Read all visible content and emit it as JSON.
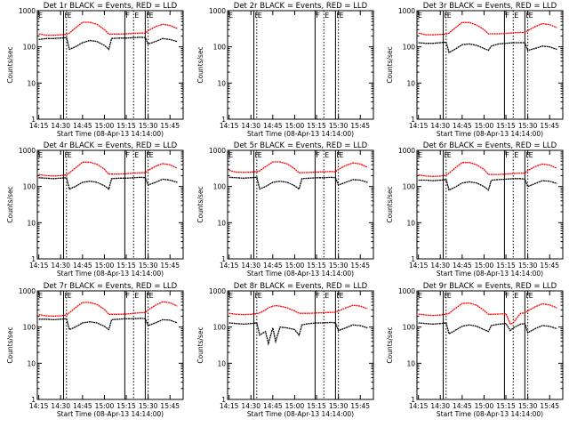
{
  "figure": {
    "background": "#ffffff",
    "axis_color": "#000000"
  },
  "colors": {
    "events": "#000000",
    "lld": "#ff0000"
  },
  "shared_labels": {
    "xlabel": "Start Time (08-Apr-13 14:14:00)",
    "ylabel": "Counts/sec",
    "xticks": [
      "14:15",
      "14:30",
      "14:45",
      "15:00",
      "15:15",
      "15:30",
      "15:45"
    ],
    "yticks": [
      "1",
      "10",
      "100",
      "1000"
    ]
  },
  "chart_data": [
    {
      "type": "line",
      "title": "Det 1r BLACK = Events, RED = LLD",
      "xlabel": "Start Time (08-Apr-13 14:14:00)",
      "ylabel": "Counts/sec",
      "xlim": [
        "14:14",
        "15:54"
      ],
      "ylim": [
        1,
        1000
      ],
      "yscale": "log",
      "markers": [
        {
          "t": "14:14",
          "label": "E"
        },
        {
          "t": "14:32",
          "label": "F"
        },
        {
          "t": "14:34",
          "label": "E"
        },
        {
          "t": "15:14",
          "label": "F"
        },
        {
          "t": "15:20",
          "label": "E"
        },
        {
          "t": "15:28",
          "label": "F"
        },
        {
          "t": "15:30",
          "label": "E"
        }
      ],
      "x": [
        "14:15",
        "14:20",
        "14:25",
        "14:30",
        "14:34",
        "14:36",
        "14:40",
        "14:45",
        "14:50",
        "14:55",
        "15:00",
        "15:03",
        "15:05",
        "15:10",
        "15:15",
        "15:20",
        "15:25",
        "15:28",
        "15:30",
        "15:35",
        "15:40",
        "15:45",
        "15:50"
      ],
      "series": [
        {
          "name": "Events",
          "values": [
            160,
            170,
            170,
            175,
            180,
            85,
            100,
            130,
            150,
            140,
            110,
            85,
            170,
            175,
            175,
            180,
            185,
            180,
            120,
            140,
            170,
            160,
            140
          ]
        },
        {
          "name": "LLD",
          "values": [
            230,
            210,
            210,
            215,
            220,
            240,
            330,
            480,
            480,
            420,
            300,
            225,
            225,
            225,
            230,
            235,
            240,
            240,
            280,
            360,
            420,
            390,
            320
          ]
        }
      ]
    },
    {
      "type": "line",
      "title": "Det 2r BLACK = Events, RED = LLD",
      "xlabel": "Start Time (08-Apr-13 14:14:00)",
      "ylabel": "Counts/sec",
      "xlim": [
        "14:14",
        "15:54"
      ],
      "ylim": [
        1,
        1000
      ],
      "yscale": "log",
      "markers": [
        {
          "t": "14:14",
          "label": "E"
        },
        {
          "t": "14:32",
          "label": "F"
        },
        {
          "t": "14:34",
          "label": "E"
        },
        {
          "t": "15:14",
          "label": "F"
        },
        {
          "t": "15:20",
          "label": "E"
        },
        {
          "t": "15:28",
          "label": "F"
        },
        {
          "t": "15:30",
          "label": "E"
        }
      ],
      "x": [],
      "series": []
    },
    {
      "type": "line",
      "title": "Det 3r BLACK = Events, RED = LLD",
      "xlabel": "Start Time (08-Apr-13 14:14:00)",
      "ylabel": "Counts/sec",
      "xlim": [
        "14:14",
        "15:54"
      ],
      "ylim": [
        1,
        1000
      ],
      "yscale": "log",
      "markers": [
        {
          "t": "14:14",
          "label": "E"
        },
        {
          "t": "14:32",
          "label": "F"
        },
        {
          "t": "14:34",
          "label": "E"
        },
        {
          "t": "15:14",
          "label": "F"
        },
        {
          "t": "15:20",
          "label": "E"
        },
        {
          "t": "15:28",
          "label": "F"
        },
        {
          "t": "15:30",
          "label": "E"
        }
      ],
      "x": [
        "14:15",
        "14:20",
        "14:25",
        "14:30",
        "14:34",
        "14:36",
        "14:40",
        "14:45",
        "14:50",
        "14:55",
        "15:00",
        "15:03",
        "15:05",
        "15:10",
        "15:15",
        "15:20",
        "15:25",
        "15:28",
        "15:30",
        "15:35",
        "15:40",
        "15:45",
        "15:50"
      ],
      "series": [
        {
          "name": "Events",
          "values": [
            130,
            125,
            125,
            130,
            135,
            70,
            85,
            115,
            120,
            110,
            90,
            80,
            105,
            120,
            125,
            130,
            130,
            130,
            80,
            90,
            105,
            100,
            85
          ]
        },
        {
          "name": "LLD",
          "values": [
            240,
            215,
            215,
            220,
            225,
            240,
            330,
            470,
            470,
            400,
            300,
            230,
            230,
            230,
            235,
            245,
            250,
            250,
            280,
            360,
            440,
            410,
            340
          ]
        }
      ]
    },
    {
      "type": "line",
      "title": "Det 4r BLACK = Events, RED = LLD",
      "xlabel": "Start Time (08-Apr-13 14:14:00)",
      "ylabel": "Counts/sec",
      "xlim": [
        "14:14",
        "15:54"
      ],
      "ylim": [
        1,
        1000
      ],
      "yscale": "log",
      "markers": [
        {
          "t": "14:14",
          "label": "E"
        },
        {
          "t": "14:32",
          "label": "F"
        },
        {
          "t": "14:34",
          "label": "E"
        },
        {
          "t": "15:14",
          "label": "F"
        },
        {
          "t": "15:20",
          "label": "E"
        },
        {
          "t": "15:28",
          "label": "F"
        },
        {
          "t": "15:30",
          "label": "E"
        }
      ],
      "x": [
        "14:15",
        "14:20",
        "14:25",
        "14:30",
        "14:34",
        "14:36",
        "14:40",
        "14:45",
        "14:50",
        "14:55",
        "15:00",
        "15:03",
        "15:05",
        "15:10",
        "15:15",
        "15:20",
        "15:25",
        "15:28",
        "15:30",
        "15:35",
        "15:40",
        "15:45",
        "15:50"
      ],
      "series": [
        {
          "name": "Events",
          "values": [
            175,
            170,
            165,
            170,
            175,
            85,
            100,
            130,
            140,
            130,
            105,
            85,
            165,
            170,
            170,
            175,
            180,
            175,
            110,
            130,
            160,
            150,
            130
          ]
        },
        {
          "name": "LLD",
          "values": [
            215,
            200,
            195,
            200,
            210,
            240,
            320,
            470,
            470,
            410,
            300,
            220,
            220,
            220,
            225,
            235,
            240,
            240,
            280,
            360,
            430,
            400,
            320
          ]
        }
      ]
    },
    {
      "type": "line",
      "title": "Det 5r BLACK = Events, RED = LLD",
      "xlabel": "Start Time (08-Apr-13 14:14:00)",
      "ylabel": "Counts/sec",
      "xlim": [
        "14:14",
        "15:54"
      ],
      "ylim": [
        1,
        1000
      ],
      "yscale": "log",
      "markers": [
        {
          "t": "14:14",
          "label": "E"
        },
        {
          "t": "14:32",
          "label": "F"
        },
        {
          "t": "14:34",
          "label": "E"
        },
        {
          "t": "15:14",
          "label": "F"
        },
        {
          "t": "15:20",
          "label": "E"
        },
        {
          "t": "15:28",
          "label": "F"
        },
        {
          "t": "15:30",
          "label": "E"
        }
      ],
      "x": [
        "14:15",
        "14:20",
        "14:25",
        "14:30",
        "14:34",
        "14:36",
        "14:40",
        "14:45",
        "14:50",
        "14:55",
        "15:00",
        "15:03",
        "15:05",
        "15:10",
        "15:15",
        "15:20",
        "15:25",
        "15:28",
        "15:30",
        "15:35",
        "15:40",
        "15:45",
        "15:50"
      ],
      "series": [
        {
          "name": "Events",
          "values": [
            180,
            175,
            170,
            175,
            180,
            85,
            100,
            130,
            140,
            130,
            105,
            85,
            165,
            170,
            175,
            175,
            180,
            175,
            110,
            130,
            155,
            150,
            130
          ]
        },
        {
          "name": "LLD",
          "values": [
            280,
            250,
            245,
            250,
            260,
            270,
            350,
            480,
            480,
            420,
            310,
            240,
            240,
            245,
            250,
            255,
            260,
            255,
            300,
            380,
            450,
            420,
            340
          ]
        }
      ]
    },
    {
      "type": "line",
      "title": "Det 6r BLACK = Events, RED = LLD",
      "xlabel": "Start Time (08-Apr-13 14:14:00)",
      "ylabel": "Counts/sec",
      "xlim": [
        "14:14",
        "15:54"
      ],
      "ylim": [
        1,
        1000
      ],
      "yscale": "log",
      "markers": [
        {
          "t": "14:14",
          "label": "E"
        },
        {
          "t": "14:32",
          "label": "F"
        },
        {
          "t": "14:34",
          "label": "E"
        },
        {
          "t": "15:14",
          "label": "F"
        },
        {
          "t": "15:20",
          "label": "E"
        },
        {
          "t": "15:28",
          "label": "F"
        },
        {
          "t": "15:30",
          "label": "E"
        }
      ],
      "x": [
        "14:15",
        "14:20",
        "14:25",
        "14:30",
        "14:34",
        "14:36",
        "14:40",
        "14:45",
        "14:50",
        "14:55",
        "15:00",
        "15:03",
        "15:05",
        "15:10",
        "15:15",
        "15:20",
        "15:25",
        "15:28",
        "15:30",
        "15:35",
        "15:40",
        "15:45",
        "15:50"
      ],
      "series": [
        {
          "name": "Events",
          "values": [
            150,
            150,
            145,
            150,
            155,
            80,
            95,
            125,
            135,
            125,
            100,
            80,
            150,
            155,
            160,
            165,
            165,
            160,
            100,
            120,
            145,
            140,
            120
          ]
        },
        {
          "name": "LLD",
          "values": [
            210,
            195,
            190,
            195,
            205,
            235,
            320,
            460,
            460,
            400,
            295,
            215,
            215,
            215,
            220,
            230,
            235,
            235,
            275,
            355,
            420,
            390,
            320
          ]
        }
      ]
    },
    {
      "type": "line",
      "title": "Det 7r BLACK = Events, RED = LLD",
      "xlabel": "Start Time (08-Apr-13 14:14:00)",
      "ylabel": "Counts/sec",
      "xlim": [
        "14:14",
        "15:54"
      ],
      "ylim": [
        1,
        1000
      ],
      "yscale": "log",
      "markers": [
        {
          "t": "14:14",
          "label": "E"
        },
        {
          "t": "14:32",
          "label": "F"
        },
        {
          "t": "14:34",
          "label": "E"
        },
        {
          "t": "15:14",
          "label": "F"
        },
        {
          "t": "15:20",
          "label": "E"
        },
        {
          "t": "15:28",
          "label": "F"
        },
        {
          "t": "15:30",
          "label": "E"
        }
      ],
      "x": [
        "14:15",
        "14:20",
        "14:25",
        "14:30",
        "14:34",
        "14:36",
        "14:40",
        "14:45",
        "14:50",
        "14:55",
        "15:00",
        "15:03",
        "15:05",
        "15:10",
        "15:15",
        "15:20",
        "15:25",
        "15:28",
        "15:30",
        "15:35",
        "15:40",
        "15:45",
        "15:50"
      ],
      "series": [
        {
          "name": "Events",
          "values": [
            165,
            165,
            160,
            165,
            170,
            85,
            100,
            130,
            140,
            130,
            105,
            85,
            160,
            165,
            170,
            170,
            175,
            170,
            110,
            130,
            160,
            155,
            130
          ]
        },
        {
          "name": "LLD",
          "values": [
            220,
            205,
            200,
            205,
            215,
            250,
            340,
            480,
            480,
            420,
            310,
            225,
            225,
            225,
            230,
            240,
            250,
            250,
            300,
            400,
            500,
            470,
            380
          ]
        }
      ]
    },
    {
      "type": "line",
      "title": "Det 8r BLACK = Events, RED = LLD",
      "xlabel": "Start Time (08-Apr-13 14:14:00)",
      "ylabel": "Counts/sec",
      "xlim": [
        "14:14",
        "15:54"
      ],
      "ylim": [
        1,
        1000
      ],
      "yscale": "log",
      "markers": [
        {
          "t": "14:14",
          "label": "E"
        },
        {
          "t": "14:32",
          "label": "F"
        },
        {
          "t": "14:34",
          "label": "E"
        },
        {
          "t": "15:14",
          "label": "F"
        },
        {
          "t": "15:20",
          "label": "E"
        },
        {
          "t": "15:28",
          "label": "F"
        },
        {
          "t": "15:30",
          "label": "E"
        }
      ],
      "x": [
        "14:15",
        "14:20",
        "14:25",
        "14:30",
        "14:34",
        "14:36",
        "14:40",
        "14:42",
        "14:45",
        "14:47",
        "14:50",
        "14:55",
        "15:00",
        "15:03",
        "15:05",
        "15:10",
        "15:15",
        "15:20",
        "15:25",
        "15:28",
        "15:30",
        "15:35",
        "15:40",
        "15:45",
        "15:50"
      ],
      "series": [
        {
          "name": "Events",
          "values": [
            130,
            125,
            120,
            125,
            130,
            60,
            75,
            35,
            95,
            40,
            100,
            95,
            85,
            60,
            115,
            125,
            130,
            130,
            135,
            130,
            80,
            95,
            115,
            110,
            95
          ]
        },
        {
          "name": "LLD",
          "values": [
            240,
            225,
            220,
            225,
            235,
            245,
            300,
            340,
            380,
            390,
            380,
            340,
            280,
            240,
            240,
            240,
            245,
            250,
            255,
            255,
            280,
            340,
            400,
            380,
            320
          ]
        }
      ]
    },
    {
      "type": "line",
      "title": "Det 9r BLACK = Events, RED = LLD",
      "xlabel": "Start Time (08-Apr-13 14:14:00)",
      "ylabel": "Counts/sec",
      "xlim": [
        "14:14",
        "15:54"
      ],
      "ylim": [
        1,
        1000
      ],
      "yscale": "log",
      "markers": [
        {
          "t": "14:14",
          "label": "E"
        },
        {
          "t": "14:32",
          "label": "F"
        },
        {
          "t": "14:34",
          "label": "E"
        },
        {
          "t": "15:14",
          "label": "F"
        },
        {
          "t": "15:20",
          "label": "E"
        },
        {
          "t": "15:28",
          "label": "F"
        },
        {
          "t": "15:30",
          "label": "E"
        }
      ],
      "x": [
        "14:15",
        "14:20",
        "14:25",
        "14:30",
        "14:34",
        "14:36",
        "14:40",
        "14:45",
        "14:50",
        "14:55",
        "15:00",
        "15:03",
        "15:05",
        "15:10",
        "15:15",
        "15:18",
        "15:20",
        "15:25",
        "15:28",
        "15:30",
        "15:35",
        "15:40",
        "15:45",
        "15:50"
      ],
      "series": [
        {
          "name": "Events",
          "values": [
            130,
            125,
            120,
            125,
            130,
            65,
            80,
            105,
            115,
            105,
            85,
            75,
            110,
            120,
            125,
            80,
            95,
            120,
            125,
            70,
            90,
            110,
            105,
            90
          ]
        },
        {
          "name": "LLD",
          "values": [
            230,
            215,
            210,
            215,
            225,
            240,
            320,
            450,
            460,
            400,
            290,
            225,
            225,
            230,
            235,
            120,
            130,
            240,
            245,
            280,
            360,
            440,
            410,
            340
          ]
        }
      ]
    }
  ]
}
